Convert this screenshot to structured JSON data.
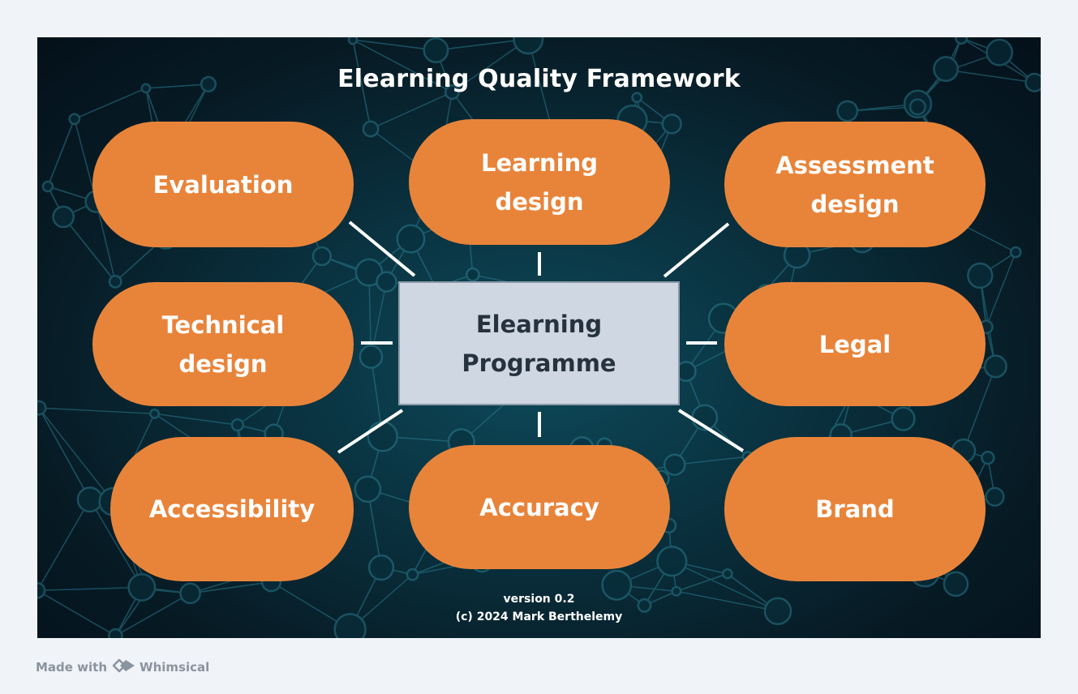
{
  "diagram": {
    "title": "Elearning Quality Framework",
    "center": "Elearning\nProgramme",
    "nodes": {
      "evaluation": "Evaluation",
      "learning_design": "Learning\ndesign",
      "assessment_design": "Assessment\ndesign",
      "technical_design": "Technical\ndesign",
      "legal": "Legal",
      "accessibility": "Accessibility",
      "accuracy": "Accuracy",
      "brand": "Brand"
    },
    "footer": {
      "version": "version 0.2",
      "copyright": "(c) 2024 Mark Berthelemy"
    }
  },
  "branding": {
    "made_with": "Made with",
    "product": "Whimsical"
  },
  "colors": {
    "node_fill": "#e8843a",
    "center_fill": "#cfd8e2",
    "connector": "#ffffff",
    "network": "#2a7a8c"
  }
}
